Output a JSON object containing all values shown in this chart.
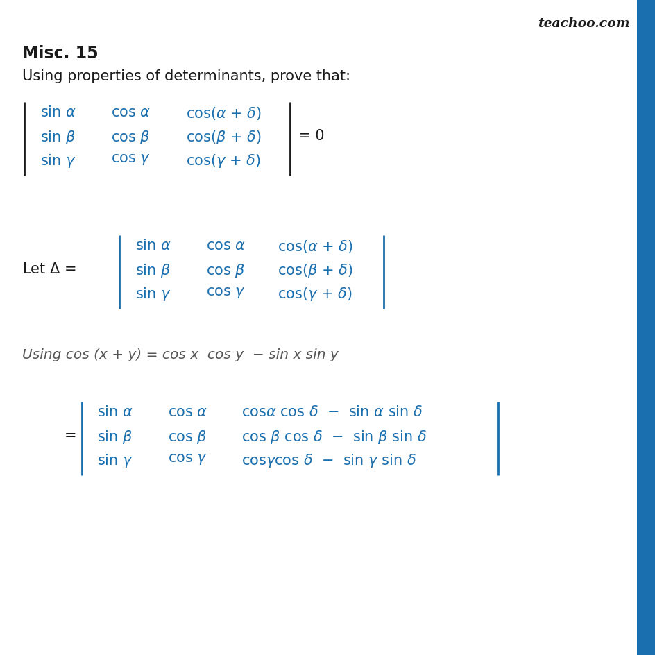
{
  "background_color": "#ffffff",
  "blue_color": "#1a6faf",
  "black_color": "#1a1a1a",
  "italic_color": "#555555",
  "title": "Misc. 15",
  "subtitle": "Using properties of determinants, prove that:",
  "watermark": "teachoo.com",
  "blue_sidebar_color": "#1a6faf",
  "italic_line": "Using cos (x + y) = cos x  cos y  − sin x sin y"
}
